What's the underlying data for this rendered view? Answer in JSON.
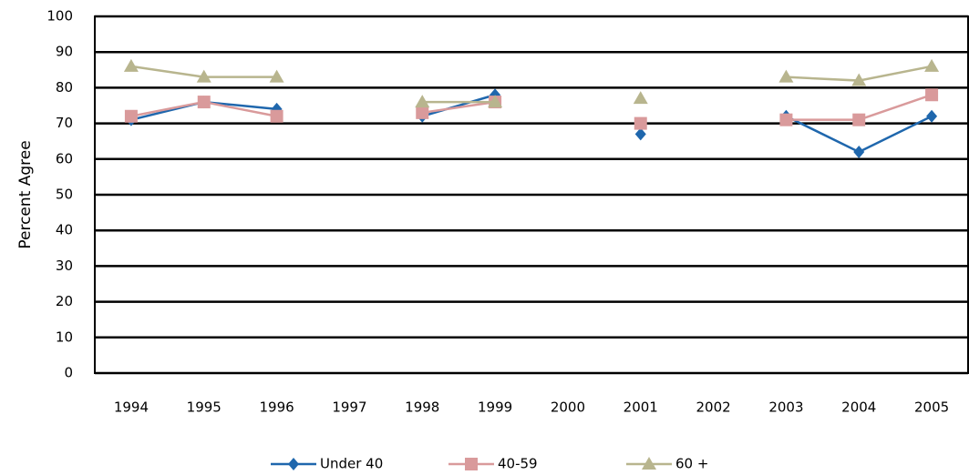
{
  "chart_data": {
    "type": "line",
    "y_label": "Percent Agree",
    "categories": [
      "1994",
      "1995",
      "1996",
      "1997",
      "1998",
      "1999",
      "2000",
      "2001",
      "2002",
      "2003",
      "2004",
      "2005"
    ],
    "series": [
      {
        "name": "Under 40",
        "color": "#1f67ad",
        "marker": "diamond",
        "values": [
          71,
          76,
          74,
          null,
          72,
          78,
          null,
          67,
          null,
          72,
          62,
          72
        ]
      },
      {
        "name": "40-59",
        "color": "#d99a9b",
        "marker": "square",
        "values": [
          72,
          76,
          72,
          null,
          73,
          76,
          null,
          70,
          null,
          71,
          71,
          78
        ]
      },
      {
        "name": "60 +",
        "color": "#b8b58e",
        "marker": "triangle",
        "values": [
          86,
          83,
          83,
          null,
          76,
          76,
          null,
          77,
          null,
          83,
          82,
          86
        ]
      }
    ],
    "ylim": [
      0,
      100
    ],
    "yticks": [
      0,
      10,
      20,
      30,
      40,
      50,
      60,
      70,
      80,
      90,
      100
    ],
    "grid": true,
    "legend": "bottom"
  }
}
